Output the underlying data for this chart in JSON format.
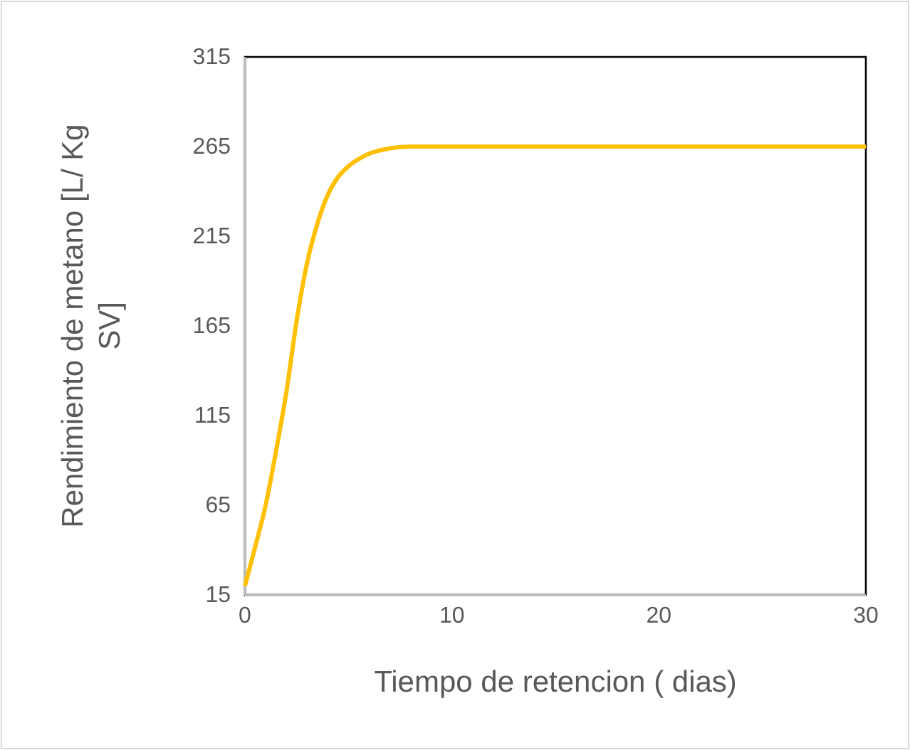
{
  "chart_data": {
    "type": "line",
    "xlabel": "Tiempo de retencion ( dias)",
    "ylabel": "Rendimiento  de metano [L/ Kg SV]",
    "series": [
      {
        "color": "#ffc000",
        "x": [
          0,
          0.5,
          1,
          1.5,
          2,
          2.5,
          3,
          3.5,
          4,
          4.5,
          5,
          6,
          7,
          8,
          10,
          15,
          20,
          30
        ],
        "values": [
          20,
          42,
          65,
          95,
          128,
          168,
          200,
          222,
          238,
          248,
          254,
          261,
          264,
          265,
          265,
          265,
          265,
          265
        ]
      }
    ],
    "xlim": [
      0,
      30
    ],
    "xticks": [
      0,
      10,
      20,
      30
    ],
    "ylim": [
      15,
      315
    ],
    "yticks": [
      15,
      65,
      115,
      165,
      215,
      265,
      315
    ],
    "grid": false,
    "marker": "none",
    "line_style": "solid"
  }
}
